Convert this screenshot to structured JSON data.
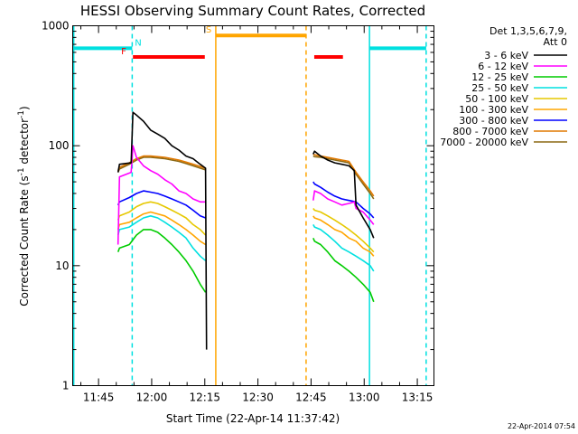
{
  "chart_data": {
    "type": "line",
    "title": "HESSI Observing Summary Count Rates, Corrected",
    "xlabel": "Start Time (22-Apr-14 11:37:42)",
    "ylabel": "Corrected Count Rate (s",
    "ylabel_sup": "-1",
    "ylabel_mid": " detector",
    "ylabel_tail": ")",
    "x_unit": "minutes",
    "xlim": [
      0,
      102
    ],
    "ylim": [
      1,
      1000
    ],
    "yscale": "log",
    "x_ticks": [
      {
        "x": 7.3,
        "label": "11:45"
      },
      {
        "x": 22.3,
        "label": "12:00"
      },
      {
        "x": 37.3,
        "label": "12:15"
      },
      {
        "x": 52.3,
        "label": "12:30"
      },
      {
        "x": 67.3,
        "label": "12:45"
      },
      {
        "x": 82.3,
        "label": "13:00"
      },
      {
        "x": 97.3,
        "label": "13:15"
      }
    ],
    "y_ticks": [
      {
        "y": 1,
        "label": "1"
      },
      {
        "y": 10,
        "label": "10"
      },
      {
        "y": 100,
        "label": "100"
      },
      {
        "y": 1000,
        "label": "1000"
      }
    ],
    "legend_header": [
      "Det 1,3,5,6,7,9,",
      "Att 0"
    ],
    "legend_position": "right",
    "series": [
      {
        "name": "3 - 6 keV",
        "color": "#000000",
        "x": [
          12.8,
          13.2,
          16.5,
          17,
          18,
          20,
          22,
          24,
          26,
          28,
          30,
          32,
          34,
          36,
          37.5,
          37.8,
          67.9,
          68.3,
          70,
          72,
          74,
          76,
          78,
          79.5,
          80,
          82,
          84,
          85
        ],
        "y": [
          60,
          70,
          72,
          190,
          180,
          160,
          135,
          125,
          115,
          100,
          92,
          82,
          78,
          70,
          65,
          2,
          85,
          90,
          82,
          76,
          72,
          70,
          68,
          62,
          32,
          25,
          20,
          17
        ]
      },
      {
        "name": "6 - 12 keV",
        "color": "#ff00ff",
        "x": [
          12.8,
          13.2,
          16.5,
          17,
          18,
          20,
          22,
          24,
          26,
          28,
          30,
          32,
          34,
          36,
          37.5,
          67.9,
          68.3,
          70,
          72,
          74,
          76,
          78,
          79.5,
          80,
          82,
          84,
          85
        ],
        "y": [
          15,
          55,
          60,
          100,
          80,
          68,
          62,
          58,
          52,
          48,
          42,
          40,
          36,
          34,
          34,
          35,
          42,
          40,
          36,
          34,
          32,
          33,
          34,
          30,
          28,
          24,
          22
        ]
      },
      {
        "name": "12 - 25 keV",
        "color": "#00cc00",
        "x": [
          12.8,
          13.2,
          16,
          18,
          20,
          22,
          24,
          26,
          28,
          30,
          32,
          34,
          36,
          37.5,
          67.9,
          68.3,
          70,
          72,
          74,
          76,
          78,
          80,
          82,
          84,
          85
        ],
        "y": [
          13,
          14,
          15,
          18,
          20,
          20,
          19,
          17,
          15,
          13,
          11,
          9,
          7,
          6,
          17,
          16,
          15,
          13,
          11,
          10,
          9,
          8,
          7,
          6,
          5
        ]
      },
      {
        "name": "25 - 50 keV",
        "color": "#00e0e0",
        "x": [
          12.8,
          13.2,
          16,
          18,
          20,
          22,
          24,
          26,
          28,
          30,
          32,
          34,
          36,
          37.5,
          67.9,
          68.3,
          70,
          72,
          74,
          76,
          78,
          80,
          82,
          84,
          85
        ],
        "y": [
          18,
          20,
          21,
          23,
          25,
          26,
          25,
          23,
          21,
          19,
          17,
          14,
          12,
          11,
          22,
          21,
          20,
          18,
          16,
          14,
          13,
          12,
          11,
          10,
          9
        ]
      },
      {
        "name": "50 - 100 keV",
        "color": "#e6c800",
        "x": [
          12.8,
          13.2,
          16,
          18,
          20,
          22,
          24,
          26,
          28,
          30,
          32,
          34,
          36,
          37.5,
          67.9,
          68.3,
          70,
          72,
          74,
          76,
          78,
          80,
          82,
          84,
          85
        ],
        "y": [
          24,
          26,
          28,
          31,
          33,
          34,
          33,
          31,
          29,
          27,
          25,
          22,
          20,
          18,
          30,
          29,
          28,
          26,
          24,
          22,
          20,
          18,
          16,
          14,
          13
        ]
      },
      {
        "name": "100 - 300 keV",
        "color": "#ffa500",
        "x": [
          12.8,
          13.2,
          16,
          18,
          20,
          22,
          24,
          26,
          28,
          30,
          32,
          34,
          36,
          37.5,
          67.9,
          68.3,
          70,
          72,
          74,
          76,
          78,
          80,
          82,
          84,
          85
        ],
        "y": [
          20,
          22,
          23,
          25,
          27,
          28,
          27,
          26,
          24,
          22,
          20,
          18,
          16,
          15,
          26,
          25,
          24,
          22,
          20,
          19,
          17,
          16,
          14,
          13,
          12
        ]
      },
      {
        "name": "300 - 800 keV",
        "color": "#0000ff",
        "x": [
          12.8,
          13.2,
          16,
          18,
          20,
          22,
          24,
          26,
          28,
          30,
          32,
          34,
          36,
          37.5,
          67.9,
          68.3,
          70,
          72,
          74,
          76,
          78,
          80,
          82,
          84,
          85
        ],
        "y": [
          32,
          34,
          37,
          40,
          42,
          41,
          40,
          38,
          36,
          34,
          32,
          29,
          26,
          25,
          50,
          48,
          45,
          41,
          38,
          36,
          35,
          34,
          30,
          27,
          25
        ]
      },
      {
        "name": "800 - 7000 keV",
        "color": "#e07800",
        "x": [
          12.8,
          13.2,
          16,
          18,
          20,
          22,
          24,
          26,
          28,
          30,
          32,
          34,
          36,
          37.5,
          67.9,
          68.3,
          70,
          72,
          74,
          76,
          78,
          80,
          82,
          84,
          85
        ],
        "y": [
          62,
          66,
          72,
          78,
          82,
          82,
          81,
          80,
          78,
          76,
          73,
          70,
          67,
          65,
          85,
          84,
          82,
          80,
          78,
          76,
          74,
          60,
          50,
          42,
          38
        ]
      },
      {
        "name": "7000 - 20000 keV",
        "color": "#8b6914",
        "x": [
          12.8,
          13.2,
          16,
          18,
          20,
          22,
          24,
          26,
          28,
          30,
          32,
          34,
          36,
          37.5,
          67.9,
          68.3,
          70,
          72,
          74,
          76,
          78,
          80,
          82,
          84,
          85
        ],
        "y": [
          60,
          64,
          70,
          76,
          80,
          80,
          79,
          78,
          76,
          74,
          71,
          68,
          65,
          63,
          82,
          81,
          80,
          78,
          76,
          74,
          72,
          58,
          48,
          40,
          36
        ]
      }
    ],
    "flags": [
      {
        "label": "",
        "color": "#00e0e0",
        "y": 650,
        "x0": 0,
        "x1": 16.8
      },
      {
        "label": "N",
        "color": "#00e0e0",
        "y": 650,
        "x0": 83.8,
        "x1": 99.8
      },
      {
        "label": "F",
        "color": "#ff0000",
        "y": 550,
        "x0": 17,
        "x1": 37.3
      },
      {
        "label": "",
        "color": "#ff0000",
        "y": 550,
        "x0": 68.2,
        "x1": 76.3
      },
      {
        "label": "S",
        "color": "#ffa500",
        "y": 830,
        "x0": 40.4,
        "x1": 65.9
      }
    ],
    "vlines": [
      {
        "x": 0.3,
        "color": "#00e0e0",
        "style": "solid"
      },
      {
        "x": 16.8,
        "color": "#00e0e0",
        "style": "dashed"
      },
      {
        "x": 40.4,
        "color": "#ffa500",
        "style": "solid"
      },
      {
        "x": 65.9,
        "color": "#ffa500",
        "style": "dashed"
      },
      {
        "x": 83.8,
        "color": "#00e0e0",
        "style": "solid"
      },
      {
        "x": 99.8,
        "color": "#00e0e0",
        "style": "dashed"
      }
    ],
    "marker_labels": [
      {
        "text": "N",
        "color": "#00e0e0",
        "x": 18.5
      },
      {
        "text": "F",
        "color": "#ff0000",
        "x": 14.4
      },
      {
        "text": "S",
        "color": "#ffa500",
        "x": 38.4
      }
    ],
    "timestamp": "22-Apr-2014 07:54"
  }
}
